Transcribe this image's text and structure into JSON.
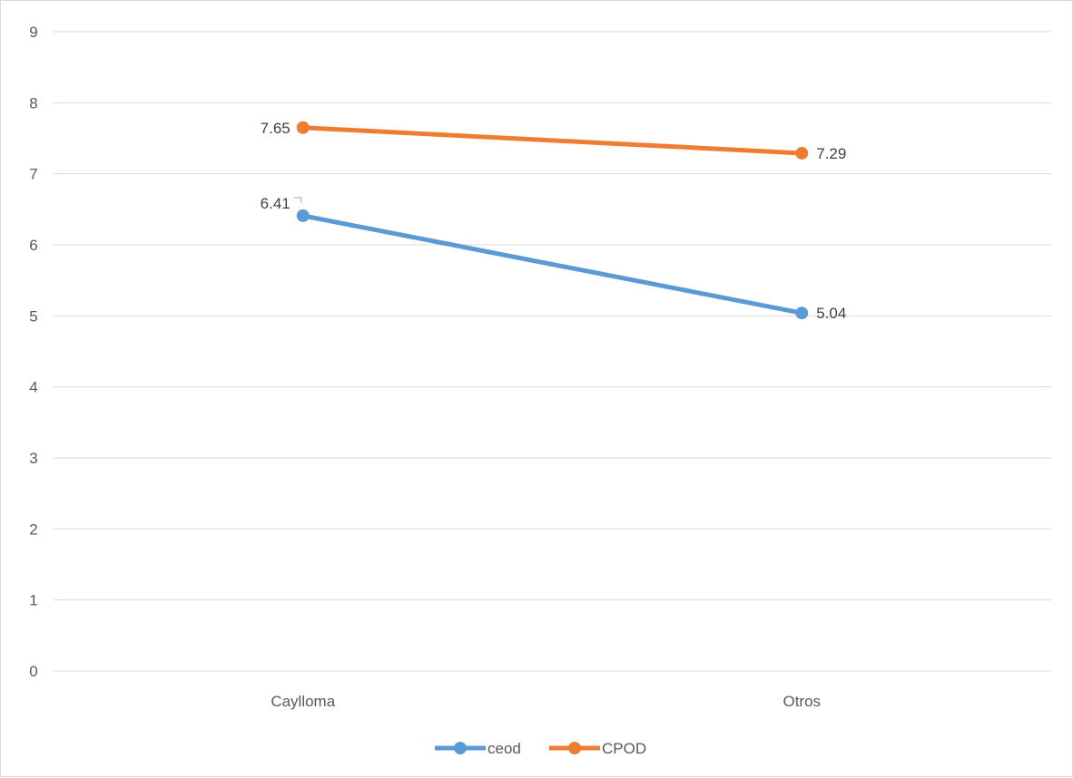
{
  "chart_data": {
    "type": "line",
    "categories": [
      "Caylloma",
      "Otros"
    ],
    "series": [
      {
        "name": "ceod",
        "values": [
          6.41,
          5.04
        ],
        "color": "#5B9BD5"
      },
      {
        "name": "CPOD",
        "values": [
          7.65,
          7.29
        ],
        "color": "#ED7D31"
      }
    ],
    "ylim": [
      0,
      9
    ],
    "yticks": [
      0,
      1,
      2,
      3,
      4,
      5,
      6,
      7,
      8,
      9
    ],
    "grid": true,
    "legend_position": "bottom",
    "title": "",
    "xlabel": "",
    "ylabel": ""
  }
}
